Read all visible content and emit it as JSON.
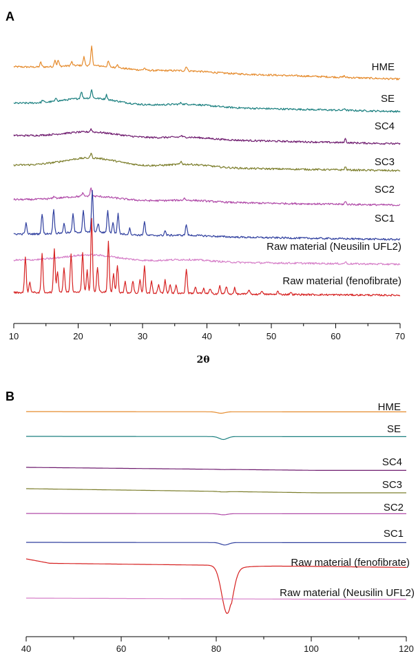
{
  "chart_data": [
    {
      "panel": "A",
      "type": "line",
      "xlabel": "2θ",
      "ylabel": "",
      "xlim": [
        10,
        70
      ],
      "xticks": [
        10,
        20,
        30,
        40,
        50,
        60,
        70
      ],
      "grid": false,
      "series": [
        {
          "name": "HME",
          "color": "#e58a2b",
          "peaks": [
            [
              14.2,
              0.3
            ],
            [
              16.4,
              0.45
            ],
            [
              16.9,
              0.4
            ],
            [
              19.0,
              0.25
            ],
            [
              20.9,
              0.55
            ],
            [
              22.1,
              1.25
            ],
            [
              24.7,
              0.35
            ],
            [
              26.1,
              0.25
            ],
            [
              30.3,
              0.15
            ],
            [
              36.8,
              0.3
            ],
            [
              61.3,
              0.1
            ]
          ],
          "halo": 0.25
        },
        {
          "name": "SE",
          "color": "#1a7f7f",
          "peaks": [
            [
              14.5,
              0.15
            ],
            [
              16.6,
              0.2
            ],
            [
              20.5,
              0.45
            ],
            [
              22.1,
              0.55
            ],
            [
              24.4,
              0.3
            ],
            [
              36.0,
              0.1
            ],
            [
              61.4,
              0.12
            ]
          ],
          "halo": 0.45
        },
        {
          "name": "SC4",
          "color": "#6e1a6e",
          "peaks": [
            [
              22.0,
              0.2
            ],
            [
              36.0,
              0.1
            ],
            [
              61.5,
              0.25
            ],
            [
              68.0,
              0.08
            ]
          ],
          "halo": 0.35
        },
        {
          "name": "SC3",
          "color": "#7b7d2a",
          "peaks": [
            [
              22.0,
              0.3
            ],
            [
              36.0,
              0.2
            ],
            [
              61.5,
              0.2
            ]
          ],
          "halo": 0.55
        },
        {
          "name": "SC2",
          "color": "#b04aa8",
          "peaks": [
            [
              22.0,
              0.55
            ],
            [
              16.3,
              0.15
            ],
            [
              20.7,
              0.2
            ],
            [
              36.5,
              0.15
            ],
            [
              61.5,
              0.18
            ]
          ],
          "halo": 0.3
        },
        {
          "name": "SC1",
          "color": "#2e3e9e",
          "peaks": [
            [
              11.9,
              0.7
            ],
            [
              14.4,
              1.3
            ],
            [
              16.2,
              1.6
            ],
            [
              17.8,
              0.6
            ],
            [
              19.2,
              1.2
            ],
            [
              20.8,
              1.4
            ],
            [
              22.2,
              2.7
            ],
            [
              23.1,
              0.6
            ],
            [
              24.6,
              1.5
            ],
            [
              25.4,
              0.7
            ],
            [
              26.2,
              1.3
            ],
            [
              28.0,
              0.4
            ],
            [
              30.3,
              0.9
            ],
            [
              33.5,
              0.3
            ],
            [
              36.8,
              0.7
            ]
          ],
          "halo": 0.2
        },
        {
          "name": "Raw material (Neusilin UFL2)",
          "color": "#d67fc8",
          "peaks": [
            [
              61.5,
              0.12
            ]
          ],
          "halo": 0.4
        },
        {
          "name": "Raw material (fenofibrate)",
          "color": "#d62020",
          "peaks": [
            [
              11.8,
              2.4
            ],
            [
              12.5,
              0.7
            ],
            [
              14.4,
              2.6
            ],
            [
              16.3,
              2.9
            ],
            [
              16.8,
              1.4
            ],
            [
              17.8,
              1.6
            ],
            [
              18.9,
              2.5
            ],
            [
              20.7,
              2.6
            ],
            [
              21.4,
              1.4
            ],
            [
              22.1,
              4.8
            ],
            [
              23.0,
              1.6
            ],
            [
              24.7,
              3.3
            ],
            [
              25.5,
              1.2
            ],
            [
              26.1,
              1.8
            ],
            [
              27.3,
              0.7
            ],
            [
              28.5,
              0.8
            ],
            [
              29.6,
              0.9
            ],
            [
              30.3,
              1.8
            ],
            [
              31.4,
              0.8
            ],
            [
              32.5,
              0.6
            ],
            [
              33.5,
              0.9
            ],
            [
              34.3,
              0.6
            ],
            [
              35.2,
              0.5
            ],
            [
              36.8,
              1.6
            ],
            [
              38.2,
              0.4
            ],
            [
              39.5,
              0.3
            ],
            [
              40.5,
              0.3
            ],
            [
              42.0,
              0.5
            ],
            [
              43.0,
              0.5
            ],
            [
              44.3,
              0.4
            ],
            [
              46.5,
              0.3
            ],
            [
              48.5,
              0.25
            ],
            [
              51.0,
              0.2
            ],
            [
              53.0,
              0.15
            ]
          ],
          "halo": 0.1
        }
      ]
    },
    {
      "panel": "B",
      "type": "line",
      "xlabel": "",
      "ylabel": "",
      "xlim": [
        40,
        120
      ],
      "xticks": [
        40,
        60,
        80,
        100,
        120
      ],
      "grid": false,
      "series": [
        {
          "name": "HME",
          "color": "#e58a2b",
          "dip": [
            81.0,
            0.15
          ],
          "drift": 0.02
        },
        {
          "name": "SE",
          "color": "#1a7f7f",
          "dip": [
            81.5,
            0.3
          ],
          "drift": 0.02
        },
        {
          "name": "SC4",
          "color": "#6e1a6e",
          "dip": [
            81.5,
            0.02
          ],
          "drift": 0.22
        },
        {
          "name": "SC3",
          "color": "#7b7d2a",
          "dip": [
            81.5,
            0.05
          ],
          "drift": 0.3
        },
        {
          "name": "SC2",
          "color": "#b04aa8",
          "dip": [
            81.5,
            0.12
          ],
          "drift": 0.02
        },
        {
          "name": "SC1",
          "color": "#2e3e9e",
          "dip": [
            81.8,
            0.25
          ],
          "drift": 0.02
        },
        {
          "name": "Raw material (fenofibrate)",
          "color": "#d62020",
          "dip": [
            81.9,
            5.0
          ],
          "drift": 0.02
        },
        {
          "name": "Raw material (Neusilin UFL2)",
          "color": "#d67fc8",
          "dip": [
            81.5,
            0.0
          ],
          "drift": 0.08
        }
      ]
    }
  ],
  "labels": {
    "panel_a": "A",
    "panel_b": "B",
    "a_xlabel": "2θ",
    "a_traces": [
      "HME",
      "SE",
      "SC4",
      "SC3",
      "SC2",
      "SC1",
      "Raw material (Neusilin UFL2)",
      "Raw material (fenofibrate)"
    ],
    "b_traces": [
      "HME",
      "SE",
      "SC4",
      "SC3",
      "SC2",
      "SC1",
      "Raw material (fenofibrate)",
      "Raw material (Neusilin UFL2)"
    ]
  }
}
